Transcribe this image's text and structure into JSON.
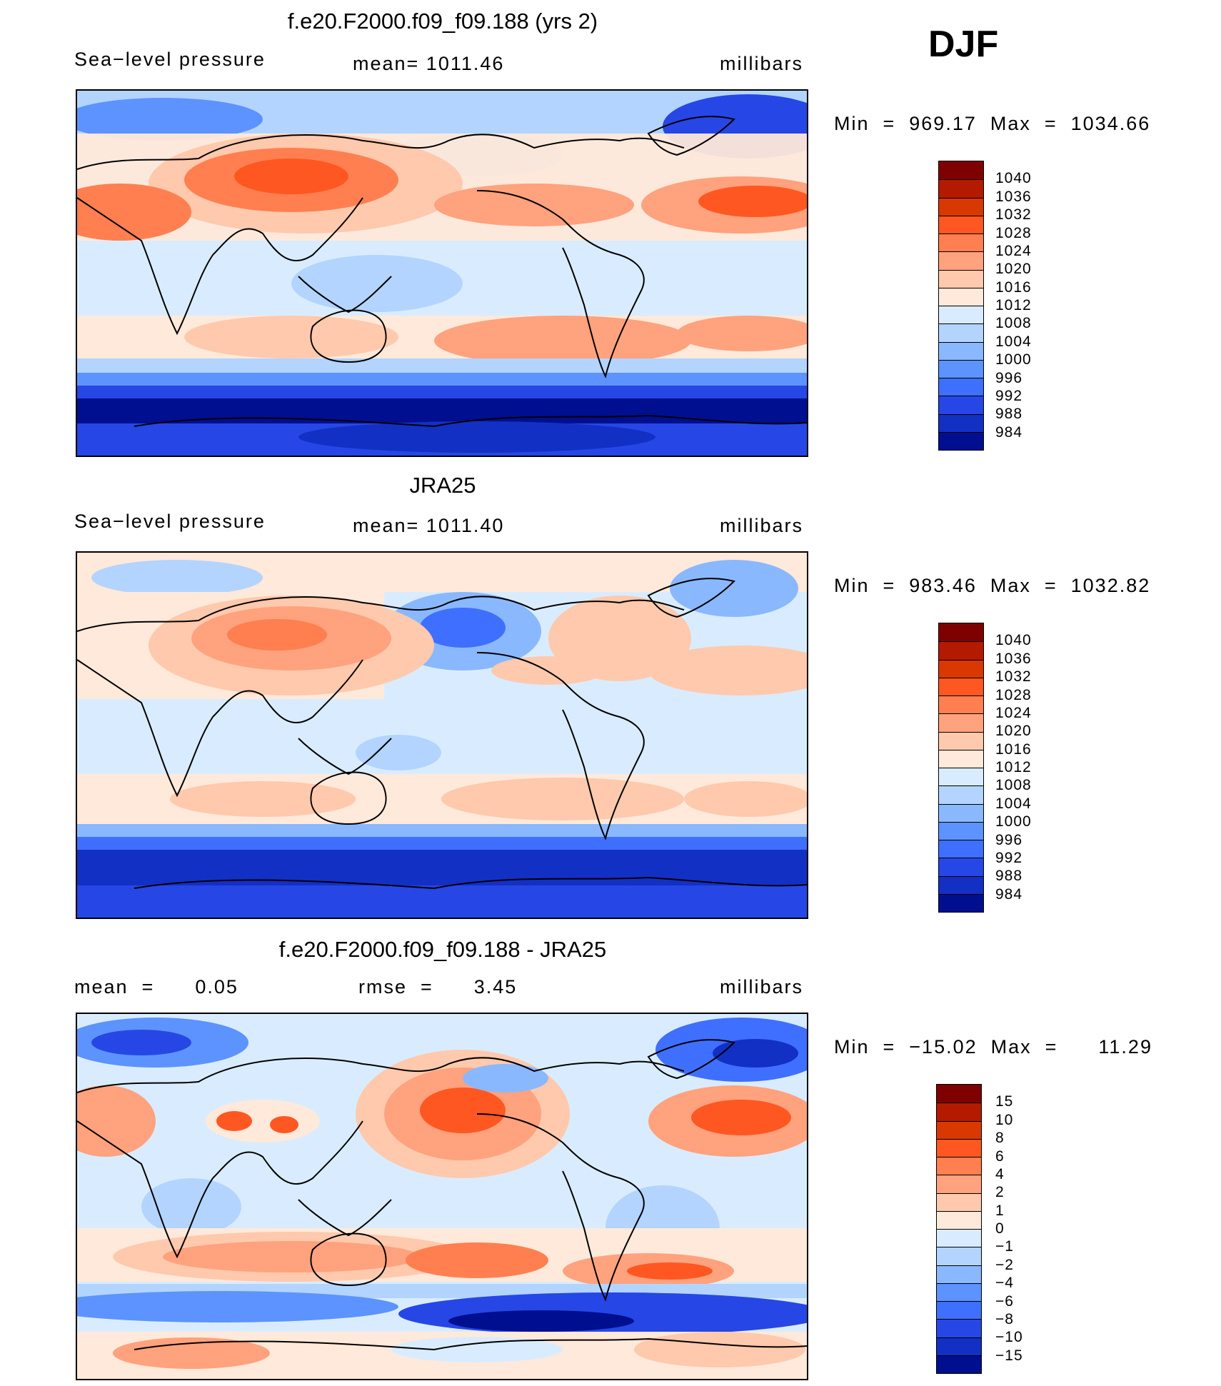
{
  "season": "DJF",
  "panels": [
    {
      "id": "model",
      "title": "f.e20.F2000.f09_f09.188 (yrs 2)",
      "left_label": "Sea−level pressure",
      "center_label": "mean=  1011.46",
      "right_label": "millibars",
      "minmax": "Min  =  969.17  Max  =  1034.66",
      "colorbar_colors": [
        "#7f0000",
        "#b31a00",
        "#d93800",
        "#ff5722",
        "#ff7f50",
        "#ffa27d",
        "#ffc9ad",
        "#ffe9da",
        "#d9ecff",
        "#b3d4ff",
        "#8ab8ff",
        "#5c93ff",
        "#3f6fff",
        "#2647e6",
        "#1330c4",
        "#000f8f"
      ],
      "colorbar_labels": [
        "1040",
        "1036",
        "1032",
        "1028",
        "1024",
        "1020",
        "1016",
        "1012",
        "1008",
        "1004",
        "1000",
        "996",
        "992",
        "988",
        "984"
      ]
    },
    {
      "id": "obs",
      "title": "JRA25",
      "left_label": "Sea−level pressure",
      "center_label": "mean=  1011.40",
      "right_label": "millibars",
      "minmax": "Min  =  983.46  Max  =  1032.82",
      "colorbar_colors": [
        "#7f0000",
        "#b31a00",
        "#d93800",
        "#ff5722",
        "#ff7f50",
        "#ffa27d",
        "#ffc9ad",
        "#ffe9da",
        "#d9ecff",
        "#b3d4ff",
        "#8ab8ff",
        "#5c93ff",
        "#3f6fff",
        "#2647e6",
        "#1330c4",
        "#000f8f"
      ],
      "colorbar_labels": [
        "1040",
        "1036",
        "1032",
        "1028",
        "1024",
        "1020",
        "1016",
        "1012",
        "1008",
        "1004",
        "1000",
        "996",
        "992",
        "988",
        "984"
      ]
    },
    {
      "id": "diff",
      "title": "f.e20.F2000.f09_f09.188 - JRA25",
      "left_label": "mean  =      0.05",
      "center_label": "rmse  =      3.45",
      "right_label": "millibars",
      "minmax": "Min  =  −15.02  Max  =      11.29",
      "colorbar_colors": [
        "#7f0000",
        "#b31a00",
        "#d93800",
        "#ff5722",
        "#ff7f50",
        "#ffa27d",
        "#ffc9ad",
        "#ffe9da",
        "#d9ecff",
        "#b3d4ff",
        "#8ab8ff",
        "#5c93ff",
        "#3f6fff",
        "#2647e6",
        "#1330c4",
        "#000f8f"
      ],
      "colorbar_labels": [
        "15",
        "10",
        "8",
        "6",
        "4",
        "2",
        "1",
        "0",
        "−1",
        "−2",
        "−4",
        "−6",
        "−8",
        "−10",
        "−15"
      ]
    }
  ]
}
